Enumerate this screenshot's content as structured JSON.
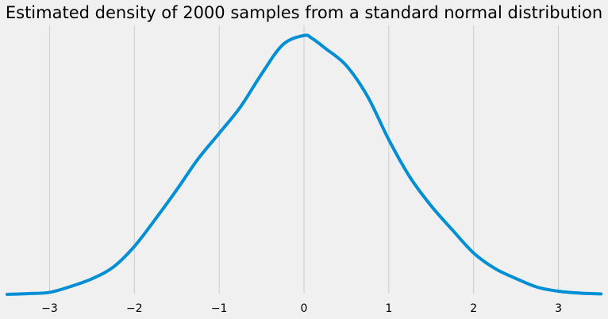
{
  "chart_data": {
    "type": "line",
    "title": "Estimated density of 2000 samples from a standard normal distribution",
    "xlabel": "",
    "ylabel": "",
    "xlim": [
      -3.5,
      3.5
    ],
    "ylim": [
      0,
      0.42
    ],
    "grid": {
      "x": true,
      "y": false
    },
    "x_ticks": [
      -3,
      -2,
      -1,
      0,
      1,
      2,
      3
    ],
    "x_tick_labels": [
      "−3",
      "−2",
      "−1",
      "0",
      "1",
      "2",
      "3"
    ],
    "y_ticks_shown": false,
    "line_color": "#008fd5",
    "background": "#f0f0f0",
    "grid_color": "#cbcbcb",
    "series": [
      {
        "x": [
          -3.5,
          -3.25,
          -3.0,
          -2.75,
          -2.5,
          -2.25,
          -2.0,
          -1.75,
          -1.5,
          -1.25,
          -1.0,
          -0.75,
          -0.5,
          -0.25,
          0.0,
          0.1,
          0.25,
          0.5,
          0.75,
          1.0,
          1.25,
          1.5,
          1.75,
          2.0,
          2.25,
          2.5,
          2.75,
          3.0,
          3.25,
          3.5
        ],
        "y": [
          0.0013,
          0.0025,
          0.0044,
          0.0136,
          0.0255,
          0.0436,
          0.0759,
          0.1188,
          0.1642,
          0.2119,
          0.252,
          0.2929,
          0.3444,
          0.3899,
          0.4043,
          0.3993,
          0.3844,
          0.3573,
          0.3093,
          0.2419,
          0.1836,
          0.1389,
          0.1015,
          0.0656,
          0.0416,
          0.0259,
          0.0125,
          0.0062,
          0.0033,
          0.002
        ]
      }
    ]
  }
}
